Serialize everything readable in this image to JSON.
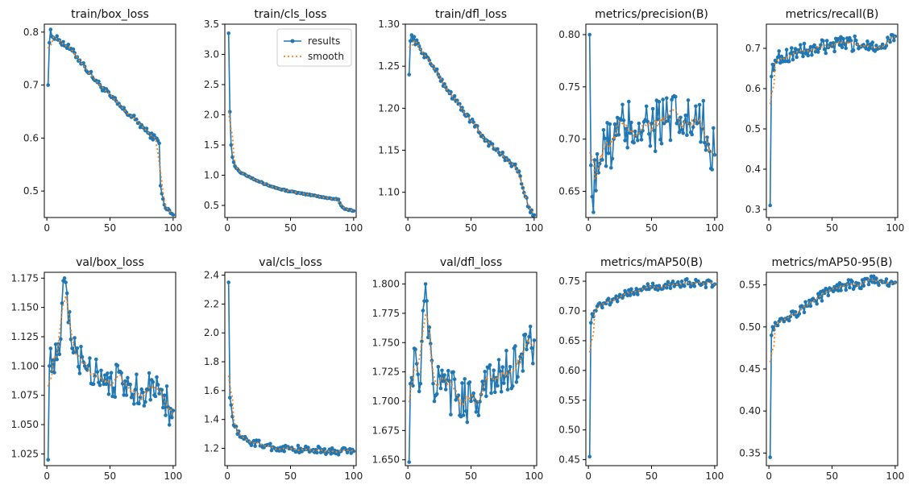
{
  "colors": {
    "results": "#1f77b4",
    "smooth": "#ff7f0e"
  },
  "legend": {
    "location": "upper right of panel 2",
    "labels": [
      "results",
      "smooth"
    ]
  },
  "chart_data": [
    {
      "type": "line",
      "title": "train/box_loss",
      "xlim": [
        -2,
        102
      ],
      "ylim": [
        0.45,
        0.815
      ],
      "xticks": [
        0,
        50,
        100
      ],
      "xtick_labels": [
        "0",
        "50",
        "100"
      ],
      "yticks": [
        0.5,
        0.6,
        0.7,
        0.8
      ],
      "ytick_labels": [
        "0.5",
        "0.6",
        "0.7",
        "0.8"
      ],
      "anchors_x": [
        1,
        2,
        3,
        5,
        10,
        20,
        30,
        40,
        50,
        60,
        70,
        80,
        88,
        89,
        90,
        91,
        92,
        95,
        100
      ],
      "anchors_y": [
        0.7,
        0.78,
        0.805,
        0.79,
        0.785,
        0.765,
        0.735,
        0.705,
        0.68,
        0.655,
        0.635,
        0.61,
        0.595,
        0.59,
        0.51,
        0.495,
        0.485,
        0.465,
        0.455
      ],
      "noise": 0.006,
      "series": [
        {
          "name": "results"
        },
        {
          "name": "smooth"
        }
      ]
    },
    {
      "type": "line",
      "title": "train/cls_loss",
      "xlim": [
        -2,
        102
      ],
      "ylim": [
        0.3,
        3.5
      ],
      "xticks": [
        0,
        50,
        100
      ],
      "xtick_labels": [
        "0",
        "50",
        "100"
      ],
      "yticks": [
        0.5,
        1.0,
        1.5,
        2.0,
        2.5,
        3.0,
        3.5
      ],
      "ytick_labels": [
        "0.5",
        "1.0",
        "1.5",
        "2.0",
        "2.5",
        "3.0",
        "3.5"
      ],
      "anchors_x": [
        1,
        2,
        3,
        4,
        6,
        10,
        20,
        30,
        40,
        50,
        60,
        70,
        80,
        88,
        90,
        93,
        100
      ],
      "anchors_y": [
        3.35,
        2.05,
        1.5,
        1.3,
        1.15,
        1.05,
        0.95,
        0.85,
        0.78,
        0.73,
        0.69,
        0.66,
        0.62,
        0.6,
        0.5,
        0.44,
        0.41
      ],
      "noise": 0.01,
      "series": [
        {
          "name": "results"
        },
        {
          "name": "smooth"
        }
      ]
    },
    {
      "type": "line",
      "title": "train/dfl_loss",
      "xlim": [
        -2,
        102
      ],
      "ylim": [
        1.07,
        1.3
      ],
      "xticks": [
        0,
        50,
        100
      ],
      "xtick_labels": [
        "0",
        "50",
        "100"
      ],
      "yticks": [
        1.1,
        1.15,
        1.2,
        1.25,
        1.3
      ],
      "ytick_labels": [
        "1.10",
        "1.15",
        "1.20",
        "1.25",
        "1.30"
      ],
      "anchors_x": [
        1,
        2,
        3,
        10,
        20,
        30,
        40,
        50,
        60,
        70,
        80,
        88,
        90,
        93,
        96,
        100
      ],
      "anchors_y": [
        1.24,
        1.28,
        1.287,
        1.27,
        1.25,
        1.225,
        1.205,
        1.185,
        1.165,
        1.15,
        1.138,
        1.125,
        1.11,
        1.095,
        1.082,
        1.073
      ],
      "noise": 0.004,
      "series": [
        {
          "name": "results"
        },
        {
          "name": "smooth"
        }
      ]
    },
    {
      "type": "line",
      "title": "metrics/precision(B)",
      "xlim": [
        -2,
        102
      ],
      "ylim": [
        0.625,
        0.81
      ],
      "xticks": [
        0,
        50,
        100
      ],
      "xtick_labels": [
        "0",
        "50",
        "100"
      ],
      "yticks": [
        0.65,
        0.7,
        0.75,
        0.8
      ],
      "ytick_labels": [
        "0.65",
        "0.70",
        "0.75",
        "0.80"
      ],
      "anchors_x": [
        1,
        2,
        3,
        4,
        5,
        10,
        20,
        30,
        40,
        50,
        60,
        70,
        80,
        90,
        95,
        100
      ],
      "anchors_y": [
        0.8,
        0.675,
        0.645,
        0.63,
        0.68,
        0.68,
        0.7,
        0.71,
        0.715,
        0.715,
        0.715,
        0.715,
        0.715,
        0.71,
        0.695,
        0.685
      ],
      "noise": 0.03,
      "series": [
        {
          "name": "results"
        },
        {
          "name": "smooth"
        }
      ]
    },
    {
      "type": "line",
      "title": "metrics/recall(B)",
      "xlim": [
        -2,
        102
      ],
      "ylim": [
        0.28,
        0.76
      ],
      "xticks": [
        0,
        50,
        100
      ],
      "xtick_labels": [
        "0",
        "50",
        "100"
      ],
      "yticks": [
        0.3,
        0.4,
        0.5,
        0.6,
        0.7
      ],
      "ytick_labels": [
        "0.3",
        "0.4",
        "0.5",
        "0.6",
        "0.7"
      ],
      "anchors_x": [
        1,
        2,
        3,
        5,
        10,
        20,
        30,
        40,
        50,
        60,
        70,
        80,
        90,
        95,
        100
      ],
      "anchors_y": [
        0.31,
        0.63,
        0.66,
        0.67,
        0.68,
        0.69,
        0.695,
        0.7,
        0.705,
        0.71,
        0.71,
        0.71,
        0.71,
        0.72,
        0.73
      ],
      "noise": 0.02,
      "series": [
        {
          "name": "results"
        },
        {
          "name": "smooth"
        }
      ]
    },
    {
      "type": "line",
      "title": "val/box_loss",
      "xlim": [
        -2,
        102
      ],
      "ylim": [
        1.015,
        1.18
      ],
      "xticks": [
        0,
        50,
        100
      ],
      "xtick_labels": [
        "0",
        "50",
        "100"
      ],
      "yticks": [
        1.025,
        1.05,
        1.075,
        1.1,
        1.125,
        1.15,
        1.175
      ],
      "ytick_labels": [
        "1.025",
        "1.050",
        "1.075",
        "1.100",
        "1.125",
        "1.150",
        "1.175"
      ],
      "anchors_x": [
        1,
        2,
        3,
        5,
        10,
        14,
        20,
        30,
        40,
        50,
        60,
        70,
        80,
        90,
        93,
        96,
        100
      ],
      "anchors_y": [
        1.02,
        1.1,
        1.115,
        1.105,
        1.11,
        1.175,
        1.115,
        1.1,
        1.095,
        1.09,
        1.085,
        1.08,
        1.08,
        1.08,
        1.075,
        1.065,
        1.062
      ],
      "noise": 0.015,
      "series": [
        {
          "name": "results"
        },
        {
          "name": "smooth"
        }
      ]
    },
    {
      "type": "line",
      "title": "val/cls_loss",
      "xlim": [
        -2,
        102
      ],
      "ylim": [
        1.08,
        2.42
      ],
      "xticks": [
        0,
        50,
        100
      ],
      "xtick_labels": [
        "0",
        "50",
        "100"
      ],
      "yticks": [
        1.2,
        1.4,
        1.6,
        1.8,
        2.0,
        2.2,
        2.4
      ],
      "ytick_labels": [
        "1.2",
        "1.4",
        "1.6",
        "1.8",
        "2.0",
        "2.2",
        "2.4"
      ],
      "anchors_x": [
        1,
        2,
        3,
        4,
        6,
        10,
        20,
        30,
        40,
        50,
        60,
        70,
        80,
        90,
        100
      ],
      "anchors_y": [
        2.35,
        1.55,
        1.5,
        1.42,
        1.35,
        1.28,
        1.24,
        1.22,
        1.2,
        1.2,
        1.19,
        1.19,
        1.18,
        1.18,
        1.18
      ],
      "noise": 0.025,
      "series": [
        {
          "name": "results"
        },
        {
          "name": "smooth"
        }
      ]
    },
    {
      "type": "line",
      "title": "val/dfl_loss",
      "xlim": [
        -2,
        102
      ],
      "ylim": [
        1.645,
        1.81
      ],
      "xticks": [
        0,
        50,
        100
      ],
      "xtick_labels": [
        "0",
        "50",
        "100"
      ],
      "yticks": [
        1.65,
        1.675,
        1.7,
        1.725,
        1.75,
        1.775,
        1.8
      ],
      "ytick_labels": [
        "1.650",
        "1.675",
        "1.700",
        "1.725",
        "1.750",
        "1.775",
        "1.800"
      ],
      "anchors_x": [
        1,
        2,
        3,
        5,
        10,
        14,
        20,
        30,
        40,
        50,
        60,
        70,
        80,
        90,
        95,
        100
      ],
      "anchors_y": [
        1.648,
        1.715,
        1.72,
        1.745,
        1.715,
        1.8,
        1.715,
        1.71,
        1.705,
        1.7,
        1.71,
        1.72,
        1.725,
        1.74,
        1.75,
        1.752
      ],
      "noise": 0.02,
      "series": [
        {
          "name": "results"
        },
        {
          "name": "smooth"
        }
      ]
    },
    {
      "type": "line",
      "title": "metrics/mAP50(B)",
      "xlim": [
        -2,
        102
      ],
      "ylim": [
        0.44,
        0.765
      ],
      "xticks": [
        0,
        50,
        100
      ],
      "xtick_labels": [
        "0",
        "50",
        "100"
      ],
      "yticks": [
        0.45,
        0.5,
        0.55,
        0.6,
        0.65,
        0.7,
        0.75
      ],
      "ytick_labels": [
        "0.45",
        "0.50",
        "0.55",
        "0.60",
        "0.65",
        "0.70",
        "0.75"
      ],
      "anchors_x": [
        1,
        2,
        3,
        5,
        10,
        20,
        30,
        40,
        50,
        60,
        70,
        80,
        90,
        100
      ],
      "anchors_y": [
        0.455,
        0.68,
        0.695,
        0.7,
        0.71,
        0.72,
        0.73,
        0.735,
        0.74,
        0.742,
        0.745,
        0.748,
        0.745,
        0.745
      ],
      "noise": 0.007,
      "series": [
        {
          "name": "results"
        },
        {
          "name": "smooth"
        }
      ]
    },
    {
      "type": "line",
      "title": "metrics/mAP50-95(B)",
      "xlim": [
        -2,
        102
      ],
      "ylim": [
        0.335,
        0.565
      ],
      "xticks": [
        0,
        50,
        100
      ],
      "xtick_labels": [
        "0",
        "50",
        "100"
      ],
      "yticks": [
        0.35,
        0.4,
        0.45,
        0.5,
        0.55
      ],
      "ytick_labels": [
        "0.35",
        "0.40",
        "0.45",
        "0.50",
        "0.55"
      ],
      "anchors_x": [
        1,
        2,
        3,
        5,
        10,
        20,
        30,
        40,
        50,
        60,
        70,
        80,
        90,
        100
      ],
      "anchors_y": [
        0.345,
        0.49,
        0.5,
        0.505,
        0.51,
        0.515,
        0.525,
        0.535,
        0.545,
        0.55,
        0.55,
        0.555,
        0.553,
        0.553
      ],
      "noise": 0.006,
      "series": [
        {
          "name": "results"
        },
        {
          "name": "smooth"
        }
      ]
    }
  ]
}
